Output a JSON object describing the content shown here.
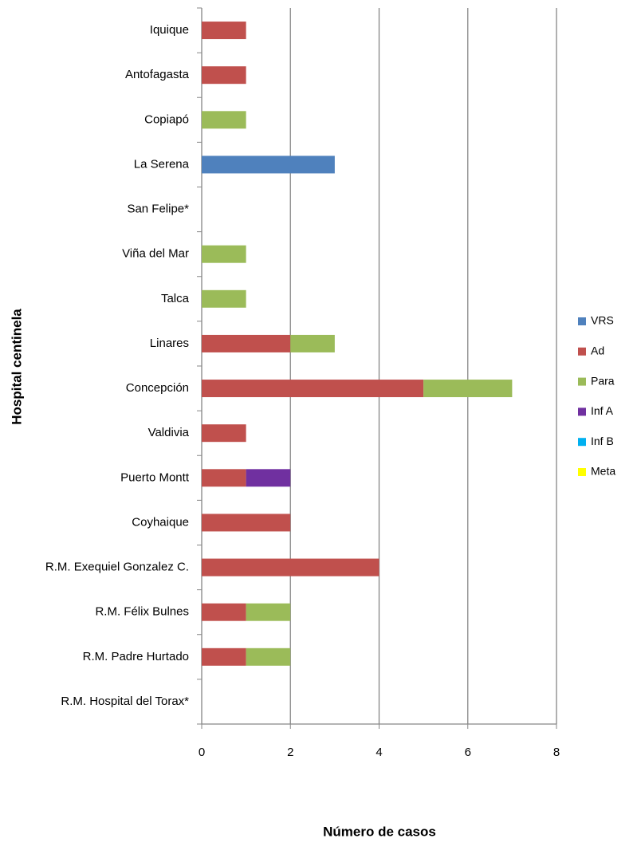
{
  "chart_data": {
    "type": "stacked-bar-horizontal",
    "x_label": "Número de casos",
    "y_label": "Hospital  centinela",
    "categories": [
      "Iquique",
      "Antofagasta",
      "Copiapó",
      "La Serena",
      "San Felipe*",
      "Viña del Mar",
      "Talca",
      "Linares",
      "Concepción",
      "Valdivia",
      "Puerto Montt",
      "Coyhaique",
      "R.M. Exequiel Gonzalez C.",
      "R.M. Félix Bulnes",
      "R.M. Padre Hurtado",
      "R.M. Hospital del Torax*"
    ],
    "series": [
      {
        "name": "VRS",
        "color": "#4f81bd",
        "values": [
          0,
          0,
          0,
          3,
          0,
          0,
          0,
          0,
          0,
          0,
          0,
          0,
          0,
          0,
          0,
          0
        ]
      },
      {
        "name": "Ad",
        "color": "#c0504d",
        "values": [
          1,
          1,
          0,
          0,
          0,
          0,
          0,
          2,
          5,
          1,
          1,
          2,
          4,
          1,
          1,
          0
        ]
      },
      {
        "name": "Para",
        "color": "#9bbb59",
        "values": [
          0,
          0,
          1,
          0,
          0,
          1,
          1,
          1,
          2,
          0,
          0,
          0,
          0,
          1,
          1,
          0
        ]
      },
      {
        "name": "Inf A",
        "color": "#7030a0",
        "values": [
          0,
          0,
          0,
          0,
          0,
          0,
          0,
          0,
          0,
          0,
          1,
          0,
          0,
          0,
          0,
          0
        ]
      },
      {
        "name": "Inf B",
        "color": "#00b0f0",
        "values": [
          0,
          0,
          0,
          0,
          0,
          0,
          0,
          0,
          0,
          0,
          0,
          0,
          0,
          0,
          0,
          0
        ]
      },
      {
        "name": "Meta",
        "color": "#ffff00",
        "values": [
          0,
          0,
          0,
          0,
          0,
          0,
          0,
          0,
          0,
          0,
          0,
          0,
          0,
          0,
          0,
          0
        ]
      }
    ],
    "xlim": [
      0,
      8
    ],
    "xticks": [
      0,
      2,
      4,
      6,
      8
    ],
    "grid": true,
    "legend": "right"
  }
}
